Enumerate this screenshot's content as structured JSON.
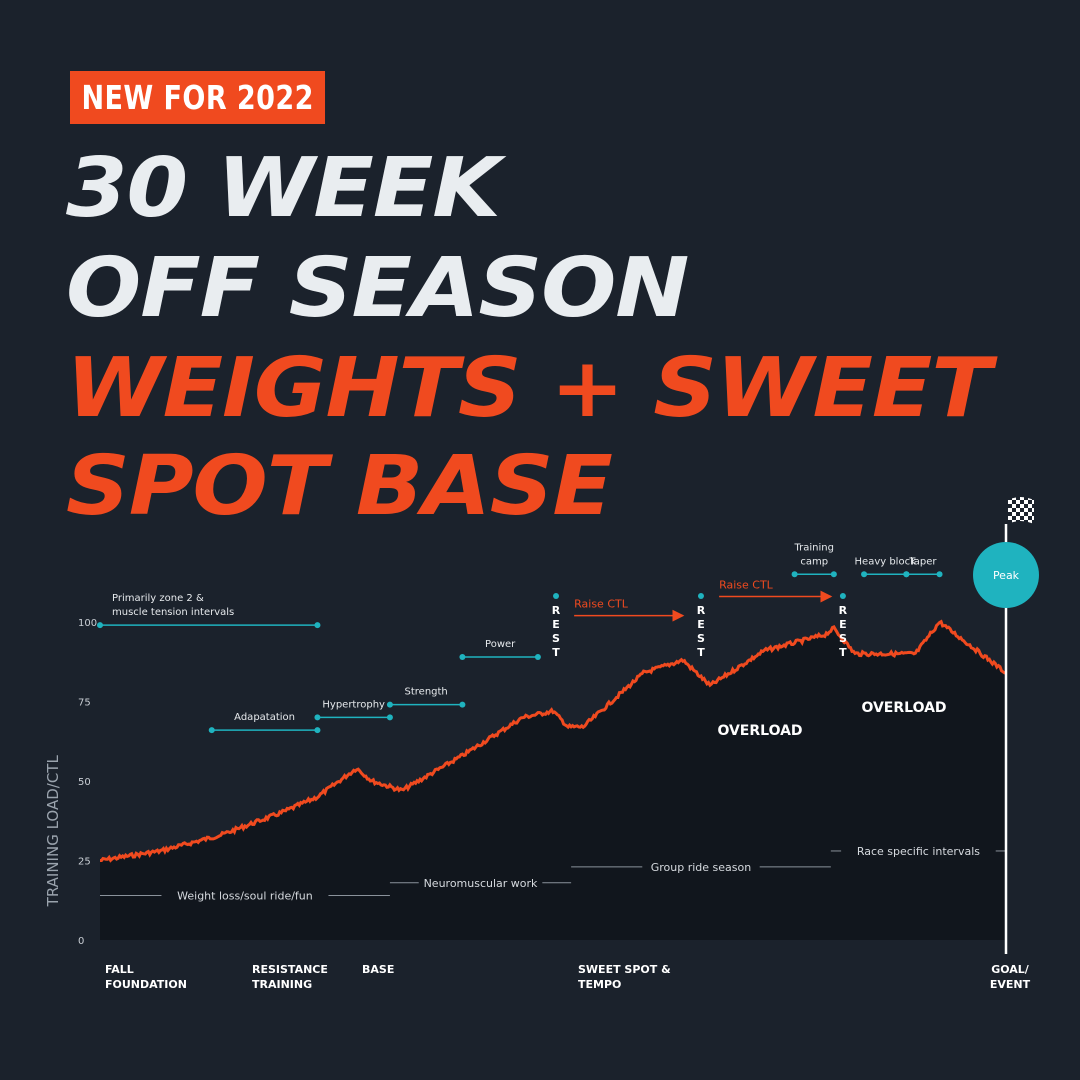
{
  "badge": "NEW FOR 2022",
  "headline": {
    "line1": "30 WEEK",
    "line2": "OFF SEASON",
    "line3": "WEIGHTS  + SWEET",
    "line4": "SPOT BASE"
  },
  "colors": {
    "background": "#1b222c",
    "accent": "#f04a1f",
    "teal": "#1fb3bf",
    "headline_white": "#e9edf0"
  },
  "chart_data": {
    "type": "line",
    "ylabel": "TRAINING LOAD/CTL",
    "ylim": [
      0,
      100
    ],
    "xlim": [
      0,
      30
    ],
    "yticks": [
      0,
      25,
      50,
      75,
      100
    ],
    "grid": false,
    "series": [
      {
        "x": [
          0,
          2,
          4,
          6,
          7.2,
          8.5,
          9,
          10,
          12,
          14,
          15,
          15.5,
          16,
          18,
          19.3,
          20.2,
          22,
          24,
          24.3,
          25,
          27,
          27.8,
          30
        ],
        "y": [
          25,
          28,
          33,
          40,
          45,
          54,
          50,
          47,
          58,
          70,
          72,
          67,
          67,
          84,
          88,
          80,
          91,
          96,
          98,
          90,
          90,
          100,
          84
        ]
      }
    ],
    "region_labels": [
      "OVERLOAD",
      "OVERLOAD"
    ],
    "phases_axis": [
      {
        "label": "FALL FOUNDATION",
        "x": 0
      },
      {
        "label": "RESISTANCE TRAINING",
        "x": 5
      },
      {
        "label": "BASE",
        "x": 8.5
      },
      {
        "label": "SWEET SPOT & TEMPO",
        "x": 16
      },
      {
        "label": "GOAL/ EVENT",
        "x": 30
      }
    ],
    "focus_bars": [
      {
        "label": "Primarily zone 2 & muscle tension intervals",
        "x0": 0,
        "x1": 7.2,
        "y": 99
      },
      {
        "label": "Adapatation",
        "x0": 3.7,
        "x1": 7.2,
        "y": 66
      },
      {
        "label": "Hypertrophy",
        "x0": 7.2,
        "x1": 9.6,
        "y": 70
      },
      {
        "label": "Strength",
        "x0": 9.6,
        "x1": 12,
        "y": 74
      },
      {
        "label": "Power",
        "x0": 12,
        "x1": 14.5,
        "y": 89
      },
      {
        "label": "Training camp",
        "x0": 23,
        "x1": 24.3,
        "y": 115
      },
      {
        "label": "Heavy block",
        "x0": 25.3,
        "x1": 26.7,
        "y": 115
      },
      {
        "label": "Taper",
        "x0": 26.7,
        "x1": 27.8,
        "y": 115
      }
    ],
    "rest_markers": [
      {
        "label": "R E S T",
        "x": 15.1
      },
      {
        "label": "R E S T",
        "x": 19.9
      },
      {
        "label": "R E S T",
        "x": 24.6
      }
    ],
    "arrows": [
      {
        "label": "Raise CTL",
        "x0": 15.7,
        "x1": 19.3,
        "y": 102
      },
      {
        "label": "Raise CTL",
        "x0": 20.5,
        "x1": 24.2,
        "y": 108
      }
    ],
    "bottom_labels": [
      {
        "label": "Weight loss/soul ride/fun",
        "x0": 0,
        "x1": 9.6,
        "y": 14
      },
      {
        "label": "Neuromuscular work",
        "x0": 9.6,
        "x1": 15.6,
        "y": 18
      },
      {
        "label": "Group ride season",
        "x0": 15.6,
        "x1": 24.2,
        "y": 23
      },
      {
        "label": "Race specific intervals",
        "x0": 24.2,
        "x1": 30,
        "y": 28
      }
    ],
    "peak_label": "Peak"
  }
}
